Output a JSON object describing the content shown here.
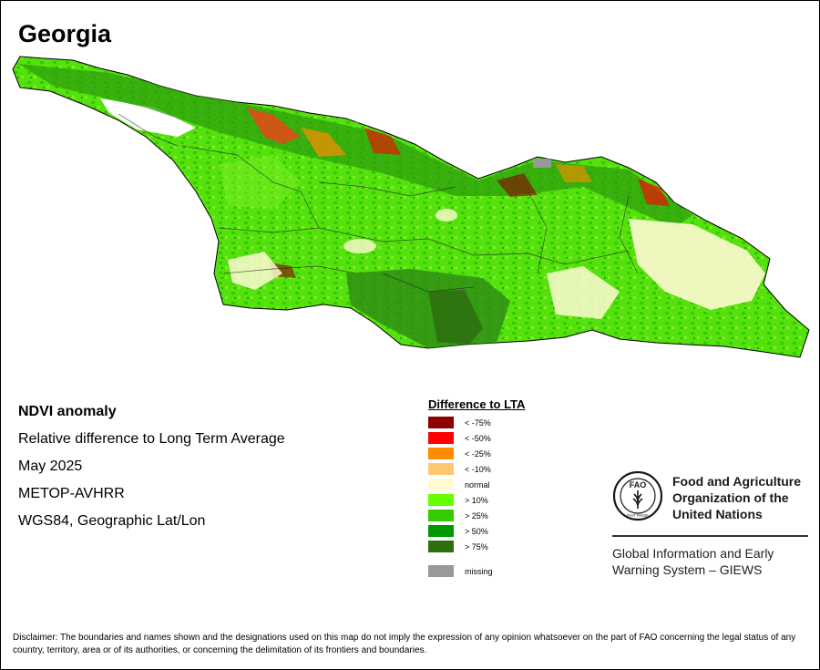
{
  "map": {
    "title": "Georgia"
  },
  "info": {
    "product": "NDVI anomaly",
    "description": "Relative difference to Long Term Average",
    "period": "May 2025",
    "sensor": "METOP-AVHRR",
    "projection": "WGS84, Geographic Lat/Lon"
  },
  "legend": {
    "title": "Difference to LTA",
    "items": [
      {
        "label": "< -75%",
        "color": "#8b0000"
      },
      {
        "label": "< -50%",
        "color": "#ff0000"
      },
      {
        "label": "< -25%",
        "color": "#ff8c00"
      },
      {
        "label": "< -10%",
        "color": "#ffc870"
      },
      {
        "label": "normal",
        "color": "#fffad2"
      },
      {
        "label": "> 10%",
        "color": "#66ff00"
      },
      {
        "label": "> 25%",
        "color": "#33cc00"
      },
      {
        "label": "> 50%",
        "color": "#009900"
      },
      {
        "label": "> 75%",
        "color": "#2d6e0f"
      }
    ],
    "missing": {
      "label": "missing",
      "color": "#999999"
    }
  },
  "organization": {
    "logo_text": "FAO",
    "logo_motto": "FIAT PANIS",
    "name_line1": "Food and Agriculture",
    "name_line2": "Organization of the",
    "name_line3": "United Nations",
    "system_line1": "Global Information and Early",
    "system_line2": "Warning System – GIEWS"
  },
  "disclaimer": "Disclaimer: The boundaries and names shown and the designations used on this map do not imply the expression of any opinion whatsoever on the part of FAO concerning the legal status of any country, territory, area or of its authorities, or concerning the delimitation of its frontiers and boundaries."
}
